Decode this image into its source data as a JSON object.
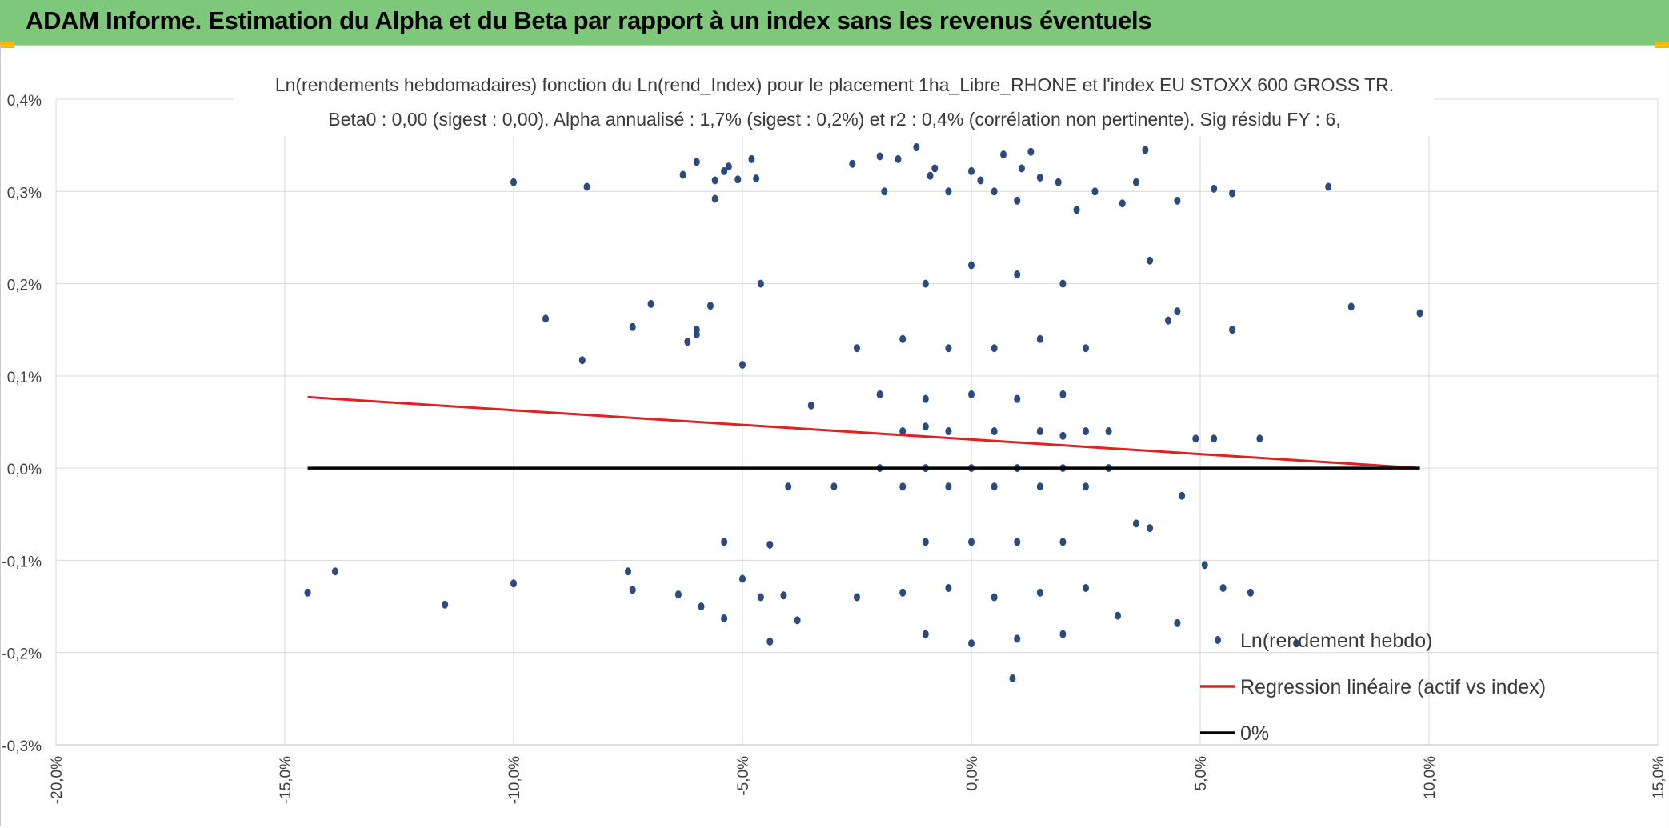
{
  "title_bar": {
    "text": "ADAM Informe. Estimation du Alpha et du Beta par rapport à un index sans les revenus éventuels",
    "color": "#7dc87a"
  },
  "chart_data": {
    "type": "scatter",
    "title": "Ln(rendements hebdomadaires) fonction du Ln(rend_Index) pour le placement 1ha_Libre_RHONE et l'index EU STOXX 600 GROSS TR.",
    "subtitle": "Beta0 : 0,00 (sigest : 0,00). Alpha annualisé : 1,7% (sigest : 0,2%) et r2 : 0,4% (corrélation non pertinente). Sig résidu FY : 6,",
    "xlim": [
      -20,
      15
    ],
    "ylim": [
      -0.3,
      0.4
    ],
    "x_ticks": [
      "-20,0%",
      "-15,0%",
      "-10,0%",
      "-5,0%",
      "0,0%",
      "5,0%",
      "10,0%",
      "15,0%"
    ],
    "y_ticks": [
      "-0,3%",
      "-0,2%",
      "-0,1%",
      "0,0%",
      "0,1%",
      "0,2%",
      "0,3%",
      "0,4%"
    ],
    "grid": true,
    "legend_position": "bottom-right",
    "series": [
      {
        "name": "Ln(rendement hebdo)",
        "type": "scatter",
        "color": "#2b4a80",
        "points": [
          [
            -14.5,
            -0.135
          ],
          [
            -13.9,
            -0.112
          ],
          [
            -11.5,
            -0.148
          ],
          [
            -10.0,
            -0.125
          ],
          [
            -10.0,
            0.31
          ],
          [
            -9.3,
            0.162
          ],
          [
            -8.4,
            0.305
          ],
          [
            -8.5,
            0.117
          ],
          [
            -7.5,
            -0.112
          ],
          [
            -7.4,
            -0.132
          ],
          [
            -7.4,
            0.153
          ],
          [
            -7.0,
            0.178
          ],
          [
            -6.4,
            -0.137
          ],
          [
            -6.3,
            0.318
          ],
          [
            -6.2,
            0.137
          ],
          [
            -6.0,
            0.332
          ],
          [
            -6.0,
            0.145
          ],
          [
            -6.0,
            0.15
          ],
          [
            -5.9,
            -0.15
          ],
          [
            -5.7,
            0.176
          ],
          [
            -5.6,
            0.312
          ],
          [
            -5.6,
            0.292
          ],
          [
            -5.4,
            0.322
          ],
          [
            -5.4,
            -0.163
          ],
          [
            -5.4,
            -0.08
          ],
          [
            -5.3,
            0.327
          ],
          [
            -5.1,
            0.313
          ],
          [
            -5.0,
            -0.12
          ],
          [
            -5.0,
            0.112
          ],
          [
            -4.8,
            0.335
          ],
          [
            -4.7,
            0.314
          ],
          [
            -4.6,
            0.2
          ],
          [
            -4.6,
            -0.14
          ],
          [
            -4.4,
            -0.083
          ],
          [
            -4.4,
            -0.188
          ],
          [
            -4.1,
            -0.138
          ],
          [
            -4.0,
            -0.02
          ],
          [
            -3.8,
            -0.165
          ],
          [
            -3.5,
            0.068
          ],
          [
            -3.0,
            -0.02
          ],
          [
            -2.6,
            0.33
          ],
          [
            -2.0,
            0.338
          ],
          [
            -1.9,
            0.3
          ],
          [
            -1.6,
            0.335
          ],
          [
            -1.2,
            0.348
          ],
          [
            -0.9,
            0.317
          ],
          [
            -0.8,
            0.325
          ],
          [
            -0.5,
            0.3
          ],
          [
            0.0,
            0.322
          ],
          [
            0.2,
            0.312
          ],
          [
            0.5,
            0.3
          ],
          [
            0.7,
            0.34
          ],
          [
            1.0,
            0.29
          ],
          [
            1.1,
            0.325
          ],
          [
            1.3,
            0.343
          ],
          [
            1.5,
            0.315
          ],
          [
            1.9,
            0.31
          ],
          [
            2.3,
            0.28
          ],
          [
            2.7,
            0.3
          ],
          [
            3.3,
            0.287
          ],
          [
            3.6,
            0.31
          ],
          [
            3.8,
            0.345
          ],
          [
            4.5,
            0.29
          ],
          [
            5.3,
            0.303
          ],
          [
            5.7,
            0.298
          ],
          [
            7.8,
            0.305
          ],
          [
            8.3,
            0.175
          ],
          [
            9.8,
            0.168
          ],
          [
            5.7,
            0.15
          ],
          [
            3.9,
            0.225
          ],
          [
            4.3,
            0.16
          ],
          [
            4.5,
            0.17
          ],
          [
            4.9,
            0.032
          ],
          [
            5.3,
            0.032
          ],
          [
            6.3,
            0.032
          ],
          [
            5.1,
            -0.105
          ],
          [
            5.5,
            -0.13
          ],
          [
            6.1,
            -0.135
          ],
          [
            7.1,
            -0.19
          ],
          [
            4.6,
            -0.03
          ],
          [
            4.5,
            -0.168
          ],
          [
            3.6,
            -0.06
          ],
          [
            3.9,
            -0.065
          ],
          [
            3.2,
            -0.16
          ],
          [
            -1.5,
            0.04
          ],
          [
            -1.0,
            0.045
          ],
          [
            -0.5,
            0.04
          ],
          [
            0.5,
            0.04
          ],
          [
            1.5,
            0.04
          ],
          [
            2.0,
            0.035
          ],
          [
            2.5,
            0.04
          ],
          [
            3.0,
            0.04
          ],
          [
            -2.0,
            0.0
          ],
          [
            -1.0,
            0.0
          ],
          [
            0.0,
            0.0
          ],
          [
            1.0,
            0.0
          ],
          [
            2.0,
            0.0
          ],
          [
            3.0,
            0.0
          ],
          [
            -1.5,
            -0.02
          ],
          [
            -0.5,
            -0.02
          ],
          [
            0.5,
            -0.02
          ],
          [
            1.5,
            -0.02
          ],
          [
            2.5,
            -0.02
          ],
          [
            -1.0,
            -0.08
          ],
          [
            0.0,
            -0.08
          ],
          [
            1.0,
            -0.08
          ],
          [
            2.0,
            -0.08
          ],
          [
            -2.0,
            0.08
          ],
          [
            -1.0,
            0.075
          ],
          [
            0.0,
            0.08
          ],
          [
            1.0,
            0.075
          ],
          [
            2.0,
            0.08
          ],
          [
            -2.5,
            0.13
          ],
          [
            -1.5,
            0.14
          ],
          [
            -0.5,
            0.13
          ],
          [
            0.5,
            0.13
          ],
          [
            1.5,
            0.14
          ],
          [
            2.5,
            0.13
          ],
          [
            -2.5,
            -0.14
          ],
          [
            -1.5,
            -0.135
          ],
          [
            -0.5,
            -0.13
          ],
          [
            0.5,
            -0.14
          ],
          [
            1.5,
            -0.135
          ],
          [
            2.5,
            -0.13
          ],
          [
            -1.0,
            0.2
          ],
          [
            0.0,
            0.22
          ],
          [
            1.0,
            0.21
          ],
          [
            2.0,
            0.2
          ],
          [
            -1.0,
            -0.18
          ],
          [
            0.0,
            -0.19
          ],
          [
            1.0,
            -0.185
          ],
          [
            0.9,
            -0.228
          ],
          [
            2.0,
            -0.18
          ]
        ]
      },
      {
        "name": "Regression linéaire (actif vs index)",
        "type": "line",
        "color": "#e32020",
        "points": [
          [
            -14.5,
            0.077
          ],
          [
            9.8,
            0.0
          ]
        ]
      },
      {
        "name": "0%",
        "type": "line",
        "color": "#000000",
        "points": [
          [
            -14.5,
            0.0
          ],
          [
            9.8,
            0.0
          ]
        ]
      }
    ]
  }
}
